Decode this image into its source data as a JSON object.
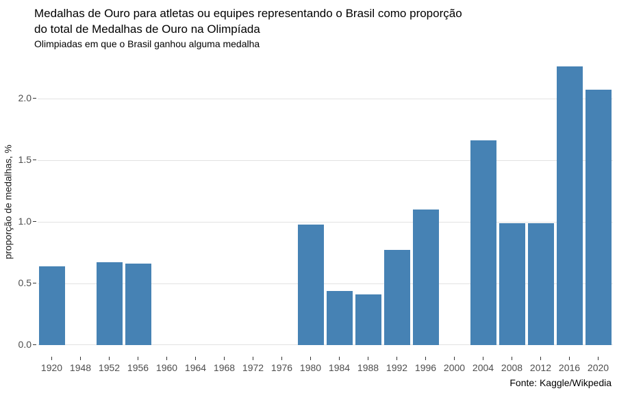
{
  "chart_data": {
    "type": "bar",
    "title": "Medalhas de Ouro para atletas ou equipes representando o Brasil como proporção do total de Medalhas de Ouro na Olimpíada",
    "subtitle": "Olimpiadas em que o Brasil ganhou alguma medalha",
    "source": "Fonte: Kaggle/Wikpedia",
    "xlabel": "",
    "ylabel": "proporção de medalhas, %",
    "categories": [
      "1920",
      "1948",
      "1952",
      "1956",
      "1960",
      "1964",
      "1968",
      "1972",
      "1976",
      "1980",
      "1984",
      "1988",
      "1992",
      "1996",
      "2000",
      "2004",
      "2008",
      "2012",
      "2016",
      "2020"
    ],
    "values": [
      0.64,
      0,
      0.67,
      0.66,
      0,
      0,
      0,
      0,
      0,
      0.98,
      0.44,
      0.41,
      0.77,
      1.1,
      0,
      1.66,
      0.99,
      0.99,
      2.26,
      2.07
    ],
    "ytick_labels": [
      "0.0",
      "0.5",
      "1.0",
      "1.5",
      "2.0"
    ],
    "ytick_values": [
      0,
      0.5,
      1.0,
      1.5,
      2.0
    ],
    "ylim": [
      0,
      2.32
    ],
    "grid": true,
    "legend": "none",
    "bar_color": "#4682b4"
  },
  "colors": {
    "bar": "#4682b4",
    "gridline": "#e2e2e2",
    "tick_mark": "#333333",
    "tick_label": "#4d4d4d",
    "axis_title": "#1a1a1a",
    "text": "#000000",
    "background": "#ffffff"
  }
}
